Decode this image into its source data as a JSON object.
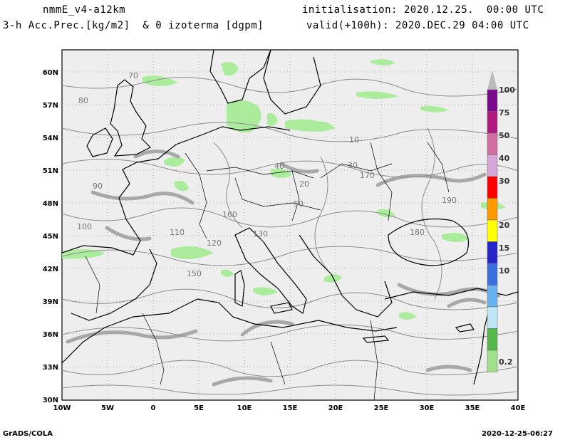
{
  "header": {
    "model": "nmmE_v4-a12km",
    "field": "3-h Acc.Prec.[kg/m2]  & 0 izoterma [dgpm]",
    "init": "initialisation: 2020.12.25.  00:00 UTC",
    "valid": "valid(+100h): 2020.DEC.29 04:00 UTC"
  },
  "footer": {
    "left": "GrADS/COLA",
    "right": "2020-12-25-06:27"
  },
  "map": {
    "lon_ticks": [
      "10W",
      "5W",
      "0",
      "5E",
      "10E",
      "15E",
      "20E",
      "25E",
      "30E",
      "35E",
      "40E"
    ],
    "lat_ticks": [
      "60N",
      "57N",
      "54N",
      "51N",
      "48N",
      "45N",
      "42N",
      "39N",
      "36N",
      "33N",
      "30N"
    ],
    "contour_labels": [
      {
        "text": "70"
      },
      {
        "text": "80"
      },
      {
        "text": "90"
      },
      {
        "text": "100"
      },
      {
        "text": "110"
      },
      {
        "text": "120"
      },
      {
        "text": "130"
      },
      {
        "text": "150"
      },
      {
        "text": "160"
      },
      {
        "text": "170"
      },
      {
        "text": "180"
      },
      {
        "text": "190"
      },
      {
        "text": "10"
      },
      {
        "text": "20"
      },
      {
        "text": "30"
      },
      {
        "text": "40"
      },
      {
        "text": "50"
      }
    ]
  },
  "colorbar": {
    "labels": [
      "100",
      "75",
      "50",
      "40",
      "30",
      "20",
      "15",
      "10",
      "0.2"
    ],
    "colors": [
      "#7a0a8c",
      "#b0187f",
      "#d16fa0",
      "#d7a6d8",
      "#ff0000",
      "#ff9a00",
      "#ffff00",
      "#2424c8",
      "#3b6fe0",
      "#6ab1f0",
      "#bde7f5",
      "#55b84a",
      "#9fe08a"
    ]
  }
}
